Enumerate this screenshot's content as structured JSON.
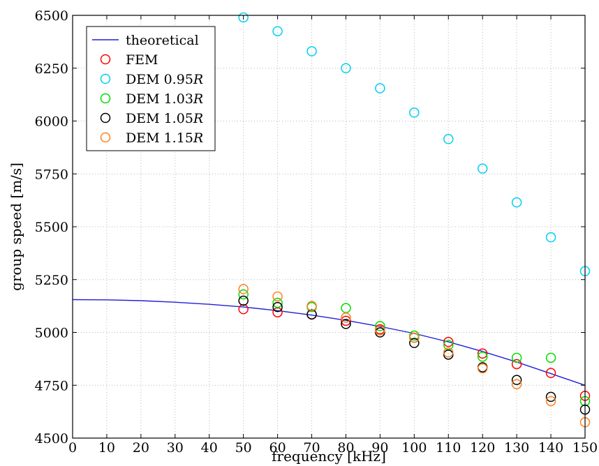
{
  "chart_data": {
    "type": "scatter",
    "xlabel": "frequency [kHz]",
    "ylabel": "group speed [m/s]",
    "xlim": [
      0,
      150
    ],
    "ylim": [
      4500,
      6500
    ],
    "xticks": [
      0,
      10,
      20,
      30,
      40,
      50,
      60,
      70,
      80,
      90,
      100,
      110,
      120,
      130,
      140,
      150
    ],
    "yticks": [
      4500,
      4750,
      5000,
      5250,
      5500,
      5750,
      6000,
      6250,
      6500
    ],
    "grid": true,
    "legend_position": "top-left",
    "series": [
      {
        "name": "theoretical",
        "legend_main": "theoretical",
        "legend_italic": "",
        "kind": "line",
        "color": "#1f1fd9",
        "x": [
          0,
          10,
          20,
          30,
          40,
          50,
          60,
          70,
          80,
          90,
          100,
          110,
          120,
          130,
          140,
          150
        ],
        "y": [
          5155,
          5154,
          5150,
          5143,
          5133,
          5120,
          5103,
          5082,
          5057,
          5028,
          4995,
          4955,
          4910,
          4860,
          4805,
          4750
        ]
      },
      {
        "name": "FEM",
        "legend_main": "FEM",
        "legend_italic": "",
        "kind": "marker",
        "color": "#ff0000",
        "x": [
          50,
          60,
          70,
          80,
          90,
          100,
          110,
          120,
          130,
          140,
          150
        ],
        "y": [
          5110,
          5095,
          5085,
          5055,
          5015,
          4975,
          4955,
          4900,
          4850,
          4808,
          4700
        ]
      },
      {
        "name": "DEM 0.95R",
        "legend_main": "DEM 0.95",
        "legend_italic": "R",
        "kind": "marker",
        "color": "#00d0f0",
        "x": [
          50,
          60,
          70,
          80,
          90,
          100,
          110,
          120,
          130,
          140,
          150
        ],
        "y": [
          6490,
          6425,
          6330,
          6250,
          6155,
          6040,
          5915,
          5775,
          5615,
          5450,
          5290
        ]
      },
      {
        "name": "DEM 1.03R",
        "legend_main": "DEM 1.03",
        "legend_italic": "R",
        "kind": "marker",
        "color": "#00dd00",
        "x": [
          50,
          60,
          70,
          80,
          90,
          100,
          110,
          120,
          130,
          140,
          150
        ],
        "y": [
          5180,
          5140,
          5120,
          5115,
          5030,
          4985,
          4940,
          4885,
          4880,
          4880,
          4675
        ]
      },
      {
        "name": "DEM 1.05R",
        "legend_main": "DEM 1.05",
        "legend_italic": "R",
        "kind": "marker",
        "color": "#000000",
        "x": [
          50,
          60,
          70,
          80,
          90,
          100,
          110,
          120,
          130,
          140,
          150
        ],
        "y": [
          5150,
          5120,
          5085,
          5040,
          5000,
          4950,
          4895,
          4835,
          4775,
          4695,
          4635
        ]
      },
      {
        "name": "DEM 1.15R",
        "legend_main": "DEM 1.15",
        "legend_italic": "R",
        "kind": "marker",
        "color": "#ff8020",
        "x": [
          50,
          60,
          70,
          80,
          90,
          100,
          110,
          120,
          130,
          140,
          150
        ],
        "y": [
          5205,
          5170,
          5125,
          5070,
          5010,
          4975,
          4905,
          4830,
          4755,
          4675,
          4575
        ]
      }
    ]
  }
}
